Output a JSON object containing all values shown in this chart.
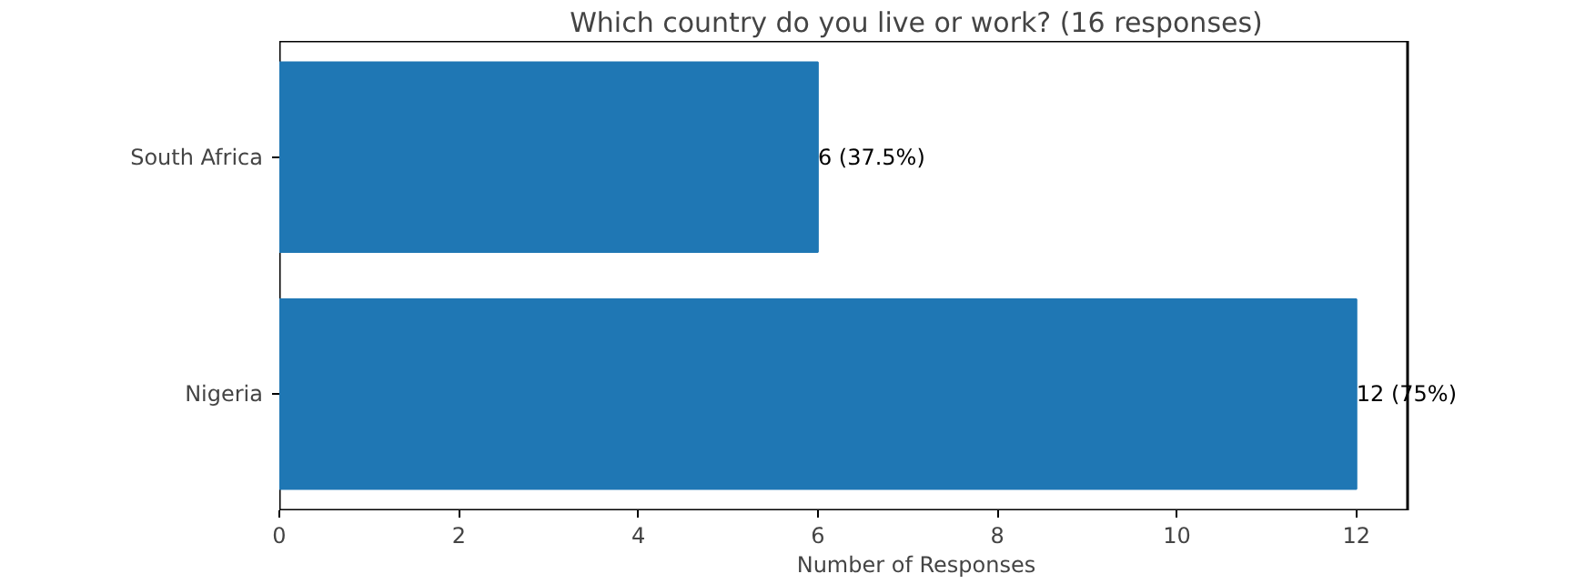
{
  "chart_data": {
    "type": "bar",
    "orientation": "horizontal",
    "title": "Which country do you live or work? (16 responses)",
    "xlabel": "Number of Responses",
    "categories": [
      "South Africa",
      "Nigeria"
    ],
    "values": [
      6,
      12
    ],
    "color": "#1f77b4",
    "value_labels": [
      "6 (37.5%)",
      "12 (75%)"
    ],
    "xlim": [
      0,
      12.57
    ],
    "xticks": [
      0,
      2,
      4,
      6,
      8,
      10,
      12
    ],
    "grid": false
  }
}
